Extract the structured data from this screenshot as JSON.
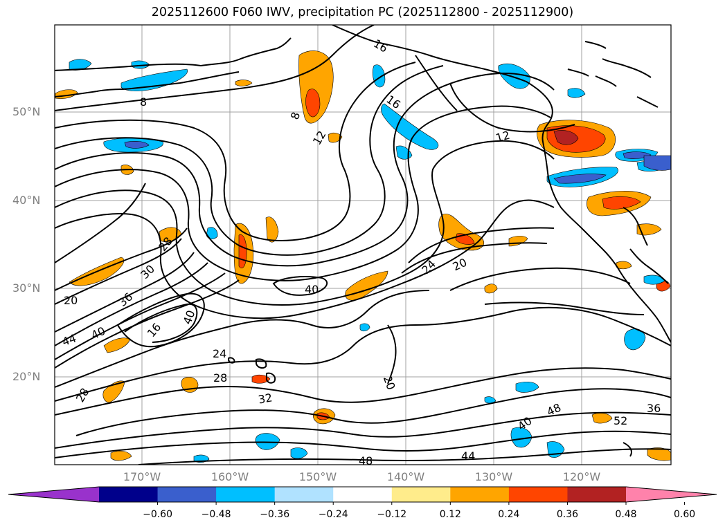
{
  "title": "2025112600 F060 IWV, precipitation PC (2025112800 - 2025112900)",
  "lat_labels": [
    "50°N",
    "40°N",
    "30°N",
    "20°N"
  ],
  "lon_labels": [
    "170°W",
    "160°W",
    "150°W",
    "140°W",
    "130°W",
    "120°W"
  ],
  "contour_labels": [
    "16",
    "16",
    "8",
    "8",
    "12",
    "12",
    "20",
    "20",
    "24",
    "28",
    "30",
    "36",
    "40",
    "40",
    "16",
    "44",
    "40",
    "24",
    "28",
    "32",
    "20",
    "40",
    "48",
    "36",
    "52",
    "48",
    "44",
    "28"
  ],
  "colorbar": {
    "ticks": [
      "−0.60",
      "−0.48",
      "−0.36",
      "−0.24",
      "−0.12",
      "0.12",
      "0.24",
      "0.36",
      "0.48",
      "0.60"
    ],
    "colors": [
      "#9932cc",
      "#00008b",
      "#3a5fcd",
      "#00bfff",
      "#b0e2ff",
      "#ffffff",
      "#ffec8b",
      "#ffa500",
      "#ff4500",
      "#b22222",
      "#ff82ab"
    ]
  }
}
